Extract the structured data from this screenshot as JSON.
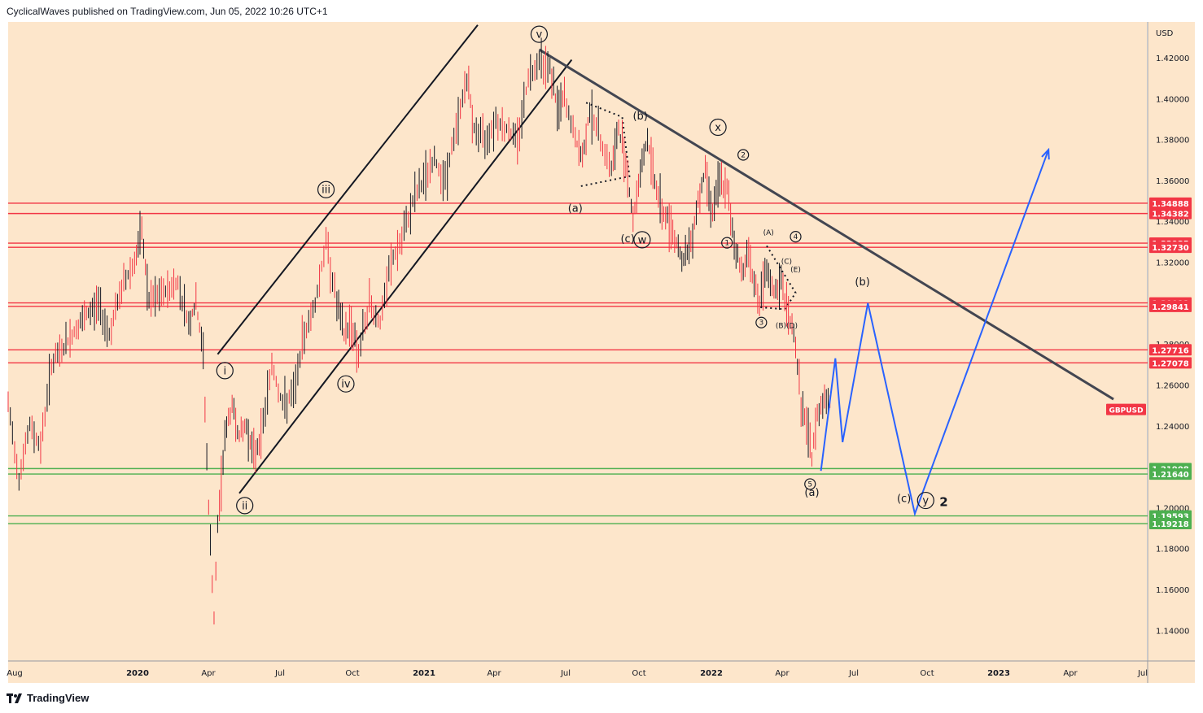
{
  "header": {
    "text": "CyclicalWaves published on TradingView.com, Jun 05, 2022 10:26 UTC+1"
  },
  "footer": {
    "logo": "TradingView"
  },
  "chart_data": {
    "type": "line",
    "symbol": "GBPUSD",
    "currency": "USD",
    "ylim": [
      1.125,
      1.4375
    ],
    "y_ticks": [
      1.14,
      1.16,
      1.18,
      1.2,
      1.22,
      1.24,
      1.26,
      1.28,
      1.3,
      1.32,
      1.34,
      1.36,
      1.38,
      1.4,
      1.42
    ],
    "x_ticks": [
      "Aug",
      "2020",
      "Apr",
      "Jul",
      "Oct",
      "2021",
      "Apr",
      "Jul",
      "Oct",
      "2022",
      "Apr",
      "Jul",
      "Oct",
      "2023",
      "Apr",
      "Jul"
    ],
    "price_series": [
      {
        "t": 0,
        "v": 1.25
      },
      {
        "t": 3,
        "v": 1.215
      },
      {
        "t": 6,
        "v": 1.24
      },
      {
        "t": 9,
        "v": 1.23
      },
      {
        "t": 12,
        "v": 1.27
      },
      {
        "t": 16,
        "v": 1.28
      },
      {
        "t": 20,
        "v": 1.29
      },
      {
        "t": 25,
        "v": 1.3
      },
      {
        "t": 28,
        "v": 1.285
      },
      {
        "t": 32,
        "v": 1.31
      },
      {
        "t": 35,
        "v": 1.32
      },
      {
        "t": 37,
        "v": 1.335
      },
      {
        "t": 39,
        "v": 1.3
      },
      {
        "t": 43,
        "v": 1.305
      },
      {
        "t": 47,
        "v": 1.31
      },
      {
        "t": 50,
        "v": 1.29
      },
      {
        "t": 52,
        "v": 1.3
      },
      {
        "t": 54,
        "v": 1.275
      },
      {
        "t": 55.5,
        "v": 1.2
      },
      {
        "t": 57,
        "v": 1.145
      },
      {
        "t": 58,
        "v": 1.19
      },
      {
        "t": 60,
        "v": 1.235
      },
      {
        "t": 62,
        "v": 1.25
      },
      {
        "t": 64,
        "v": 1.235
      },
      {
        "t": 66,
        "v": 1.24
      },
      {
        "t": 68,
        "v": 1.225
      },
      {
        "t": 70,
        "v": 1.235
      },
      {
        "t": 73,
        "v": 1.27
      },
      {
        "t": 76,
        "v": 1.25
      },
      {
        "t": 79,
        "v": 1.255
      },
      {
        "t": 82,
        "v": 1.285
      },
      {
        "t": 85,
        "v": 1.3
      },
      {
        "t": 88,
        "v": 1.33
      },
      {
        "t": 91,
        "v": 1.3
      },
      {
        "t": 93,
        "v": 1.285
      },
      {
        "t": 95,
        "v": 1.29
      },
      {
        "t": 97,
        "v": 1.275
      },
      {
        "t": 100,
        "v": 1.3
      },
      {
        "t": 103,
        "v": 1.29
      },
      {
        "t": 106,
        "v": 1.32
      },
      {
        "t": 109,
        "v": 1.33
      },
      {
        "t": 112,
        "v": 1.35
      },
      {
        "t": 115,
        "v": 1.36
      },
      {
        "t": 118,
        "v": 1.37
      },
      {
        "t": 121,
        "v": 1.36
      },
      {
        "t": 124,
        "v": 1.385
      },
      {
        "t": 127,
        "v": 1.41
      },
      {
        "t": 129,
        "v": 1.385
      },
      {
        "t": 132,
        "v": 1.38
      },
      {
        "t": 135,
        "v": 1.39
      },
      {
        "t": 138,
        "v": 1.385
      },
      {
        "t": 141,
        "v": 1.38
      },
      {
        "t": 144,
        "v": 1.41
      },
      {
        "t": 147,
        "v": 1.42
      },
      {
        "t": 150,
        "v": 1.415
      },
      {
        "t": 152,
        "v": 1.395
      },
      {
        "t": 154,
        "v": 1.4
      },
      {
        "t": 157,
        "v": 1.38
      },
      {
        "t": 159,
        "v": 1.37
      },
      {
        "t": 161,
        "v": 1.395
      },
      {
        "t": 164,
        "v": 1.38
      },
      {
        "t": 167,
        "v": 1.365
      },
      {
        "t": 169,
        "v": 1.385
      },
      {
        "t": 171,
        "v": 1.37
      },
      {
        "t": 173,
        "v": 1.34
      },
      {
        "t": 175,
        "v": 1.365
      },
      {
        "t": 177,
        "v": 1.38
      },
      {
        "t": 179,
        "v": 1.36
      },
      {
        "t": 181,
        "v": 1.345
      },
      {
        "t": 183,
        "v": 1.34
      },
      {
        "t": 185,
        "v": 1.33
      },
      {
        "t": 187,
        "v": 1.32
      },
      {
        "t": 189,
        "v": 1.33
      },
      {
        "t": 191,
        "v": 1.35
      },
      {
        "t": 193,
        "v": 1.365
      },
      {
        "t": 195,
        "v": 1.345
      },
      {
        "t": 197,
        "v": 1.36
      },
      {
        "t": 199,
        "v": 1.355
      },
      {
        "t": 201,
        "v": 1.33
      },
      {
        "t": 203,
        "v": 1.315
      },
      {
        "t": 205,
        "v": 1.325
      },
      {
        "t": 206.5,
        "v": 1.31
      },
      {
        "t": 208,
        "v": 1.3
      },
      {
        "t": 210,
        "v": 1.315
      },
      {
        "t": 212,
        "v": 1.305
      },
      {
        "t": 214,
        "v": 1.31
      },
      {
        "t": 216,
        "v": 1.295
      },
      {
        "t": 218,
        "v": 1.28
      },
      {
        "t": 219.5,
        "v": 1.25
      },
      {
        "t": 221,
        "v": 1.24
      },
      {
        "t": 222.5,
        "v": 1.225
      },
      {
        "t": 224,
        "v": 1.245
      },
      {
        "t": 226,
        "v": 1.255
      },
      {
        "t": 228,
        "v": 1.25
      }
    ],
    "horizontal_levels": [
      {
        "value": "1.34888",
        "v": 1.34888,
        "color": "#f23645"
      },
      {
        "value": "1.34382",
        "v": 1.34382,
        "color": "#f23645"
      },
      {
        "value": "1.32935",
        "v": 1.32935,
        "color": "#f23645"
      },
      {
        "value": "1.32730",
        "v": 1.3273,
        "color": "#f23645"
      },
      {
        "value": "1.30011",
        "v": 1.30011,
        "color": "#f23645"
      },
      {
        "value": "1.29841",
        "v": 1.29841,
        "color": "#f23645"
      },
      {
        "value": "1.27716",
        "v": 1.27716,
        "color": "#f23645"
      },
      {
        "value": "1.27078",
        "v": 1.27078,
        "color": "#f23645"
      },
      {
        "value": "1.21908",
        "v": 1.21908,
        "color": "#4caf50"
      },
      {
        "value": "1.21640",
        "v": 1.2164,
        "color": "#4caf50"
      },
      {
        "value": "1.19593",
        "v": 1.19593,
        "color": "#4caf50"
      },
      {
        "value": "1.19218",
        "v": 1.19218,
        "color": "#4caf50"
      }
    ],
    "current_symbol_tag": {
      "label": "GBPUSD",
      "v": 1.248,
      "color": "#f23645"
    },
    "projection": [
      {
        "t": 225,
        "v": 1.218
      },
      {
        "t": 229,
        "v": 1.273
      },
      {
        "t": 231,
        "v": 1.232
      },
      {
        "t": 238,
        "v": 1.3
      },
      {
        "t": 251,
        "v": 1.197
      },
      {
        "t": 288,
        "v": 1.375
      }
    ],
    "trendlines": [
      {
        "from": {
          "t": 58,
          "v": 1.275
        },
        "to": {
          "t": 130,
          "v": 1.436
        }
      },
      {
        "from": {
          "t": 64,
          "v": 1.207
        },
        "to": {
          "t": 156,
          "v": 1.419
        }
      },
      {
        "from": {
          "t": 147,
          "v": 1.424
        },
        "to": {
          "t": 306,
          "v": 1.253
        }
      }
    ],
    "dotted_lines": [
      {
        "points": [
          {
            "t": 160,
            "v": 1.398
          },
          {
            "t": 170,
            "v": 1.391
          },
          {
            "t": 172,
            "v": 1.362
          },
          {
            "t": 158,
            "v": 1.357
          }
        ]
      },
      {
        "points": [
          {
            "t": 210,
            "v": 1.328
          },
          {
            "t": 218,
            "v": 1.305
          },
          {
            "t": 215,
            "v": 1.297
          },
          {
            "t": 208,
            "v": 1.298
          }
        ]
      }
    ],
    "wave_labels": [
      {
        "text": "i",
        "t": 60,
        "v": 1.267,
        "circle": true
      },
      {
        "text": "ii",
        "t": 65.5,
        "v": 1.201,
        "circle": true
      },
      {
        "text": "iii",
        "t": 88,
        "v": 1.3555,
        "circle": true
      },
      {
        "text": "iv",
        "t": 93.5,
        "v": 1.2605,
        "circle": true
      },
      {
        "text": "v",
        "t": 147,
        "v": 1.4315,
        "circle": true
      },
      {
        "text": "(a)",
        "t": 157,
        "v": 1.3465,
        "circle": false
      },
      {
        "text": "(b)",
        "t": 175,
        "v": 1.3915,
        "circle": false
      },
      {
        "text": "(c)",
        "t": 171.5,
        "v": 1.3315,
        "circle": false
      },
      {
        "text": "w",
        "t": 175.5,
        "v": 1.331,
        "circle": true
      },
      {
        "text": "x",
        "t": 196.5,
        "v": 1.386,
        "circle": true
      },
      {
        "text": "2",
        "t": 203.5,
        "v": 1.3725,
        "circle": true,
        "small": true
      },
      {
        "text": "1",
        "t": 199,
        "v": 1.3295,
        "circle": true,
        "small": true
      },
      {
        "text": "(A)",
        "t": 210.5,
        "v": 1.3345,
        "circle": false,
        "small": true
      },
      {
        "text": "4",
        "t": 218,
        "v": 1.3325,
        "circle": true,
        "small": true
      },
      {
        "text": "(C)",
        "t": 215.5,
        "v": 1.3205,
        "circle": false,
        "small": true
      },
      {
        "text": "(E)",
        "t": 218,
        "v": 1.3165,
        "circle": false,
        "small": true
      },
      {
        "text": "3",
        "t": 208.5,
        "v": 1.2905,
        "circle": true,
        "small": true
      },
      {
        "text": "(B)(D)",
        "t": 215.5,
        "v": 1.289,
        "circle": false,
        "small": true
      },
      {
        "text": "5",
        "t": 222,
        "v": 1.2115,
        "circle": true,
        "small": true
      },
      {
        "text": "(a)",
        "t": 222.5,
        "v": 1.2075,
        "circle": false
      },
      {
        "text": "(b)",
        "t": 236.5,
        "v": 1.3105,
        "circle": false
      },
      {
        "text": "(c)",
        "t": 248,
        "v": 1.2045,
        "circle": false
      },
      {
        "text": "y",
        "t": 254,
        "v": 1.2035,
        "circle": true
      },
      {
        "text": "2",
        "t": 259,
        "v": 1.2025,
        "circle": false,
        "bold": true
      }
    ],
    "grid": false
  }
}
